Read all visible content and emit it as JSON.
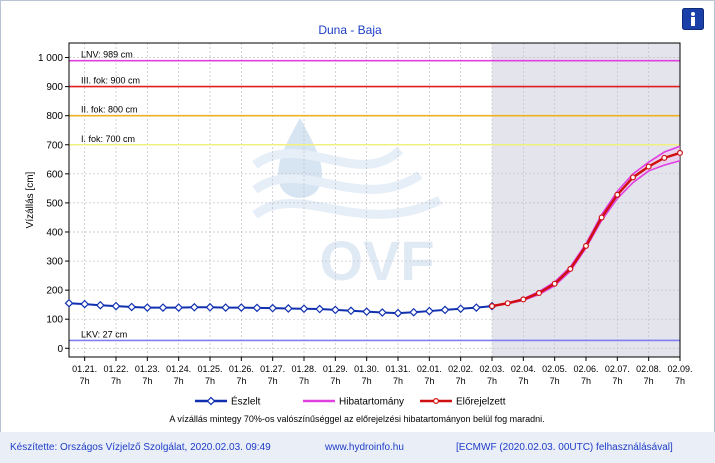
{
  "chart_data": {
    "type": "line",
    "title": "Duna - Baja",
    "ylabel": "Vízállás [cm]",
    "xlabel": "",
    "ylim": [
      -30,
      1050
    ],
    "y_ticks": [
      0,
      100,
      200,
      300,
      400,
      500,
      600,
      700,
      800,
      900,
      1000
    ],
    "y_tick_labels": [
      "0",
      "100",
      "200",
      "300",
      "400",
      "500",
      "600",
      "700",
      "800",
      "900",
      "1 000"
    ],
    "x_tick_labels": [
      {
        "date": "01.21.",
        "time": "7h"
      },
      {
        "date": "01.22.",
        "time": "7h"
      },
      {
        "date": "01.23.",
        "time": "7h"
      },
      {
        "date": "01.24.",
        "time": "7h"
      },
      {
        "date": "01.25.",
        "time": "7h"
      },
      {
        "date": "01.26.",
        "time": "7h"
      },
      {
        "date": "01.27.",
        "time": "7h"
      },
      {
        "date": "01.28.",
        "time": "7h"
      },
      {
        "date": "01.29.",
        "time": "7h"
      },
      {
        "date": "01.30.",
        "time": "7h"
      },
      {
        "date": "01.31.",
        "time": "7h"
      },
      {
        "date": "02.01.",
        "time": "7h"
      },
      {
        "date": "02.02.",
        "time": "7h"
      },
      {
        "date": "02.03.",
        "time": "7h"
      },
      {
        "date": "02.04.",
        "time": "7h"
      },
      {
        "date": "02.05.",
        "time": "7h"
      },
      {
        "date": "02.06.",
        "time": "7h"
      },
      {
        "date": "02.07.",
        "time": "7h"
      },
      {
        "date": "02.08.",
        "time": "7h"
      },
      {
        "date": "02.09.",
        "time": "7h"
      }
    ],
    "x_range_days": [
      -0.5,
      19.0
    ],
    "forecast_region_start_day": 13.0,
    "grid": true,
    "legend_position": "bottom",
    "thresholds": [
      {
        "label": "LNV: 989 cm",
        "value": 989,
        "color": "#e040e0"
      },
      {
        "label": "III. fok: 900 cm",
        "value": 900,
        "color": "#e02020"
      },
      {
        "label": "II. fok: 800 cm",
        "value": 800,
        "color": "#f0b020"
      },
      {
        "label": "I. fok: 700 cm",
        "value": 700,
        "color": "#f0f080"
      },
      {
        "label": "LKV: 27 cm",
        "value": 27,
        "color": "#8080f0"
      }
    ],
    "series": [
      {
        "name": "Észlelt",
        "color": "#1030b0",
        "x_days": [
          -0.5,
          0,
          0.5,
          1,
          1.5,
          2,
          2.5,
          3,
          3.5,
          4,
          4.5,
          5,
          5.5,
          6,
          6.5,
          7,
          7.5,
          8,
          8.5,
          9,
          9.5,
          10,
          10.5,
          11,
          11.5,
          12,
          12.5,
          13
        ],
        "values": [
          155,
          152,
          148,
          145,
          142,
          140,
          140,
          140,
          141,
          141,
          140,
          140,
          139,
          138,
          137,
          136,
          135,
          132,
          129,
          126,
          123,
          121,
          124,
          128,
          132,
          136,
          140,
          145
        ]
      },
      {
        "name": "Hibatartomány",
        "color": "#e040e0",
        "x_days": [
          13,
          13.5,
          14,
          14.5,
          15,
          15.5,
          16,
          16.5,
          17,
          17.5,
          18,
          18.5,
          19
        ],
        "upper": [
          145,
          156,
          170,
          195,
          228,
          280,
          360,
          460,
          540,
          600,
          640,
          675,
          695
        ],
        "lower": [
          145,
          153,
          165,
          185,
          215,
          265,
          345,
          440,
          515,
          570,
          610,
          630,
          645
        ]
      },
      {
        "name": "Előrejelzett",
        "color": "#d01010",
        "x_days": [
          13,
          13.5,
          14,
          14.5,
          15,
          15.5,
          16,
          16.5,
          17,
          17.5,
          18,
          18.5,
          19
        ],
        "values": [
          145,
          155,
          168,
          190,
          222,
          273,
          352,
          450,
          528,
          588,
          625,
          655,
          672
        ]
      }
    ]
  },
  "footer": {
    "left": "Készítette: Országos Vízjelző Szolgálat, 2020.02.03. 09:49",
    "middle": "www.hydroinfo.hu",
    "right": "[ECMWF (2020.02.03. 00UTC) felhasználásával]"
  },
  "note": "A vízállás mintegy 70%-os valószínűséggel az előrejelzési hibatartományon belül fog maradni.",
  "watermark": "OVF",
  "info_icon": "info-icon",
  "plot_background": "#ffffff",
  "forecast_background": "#e4e4ec"
}
